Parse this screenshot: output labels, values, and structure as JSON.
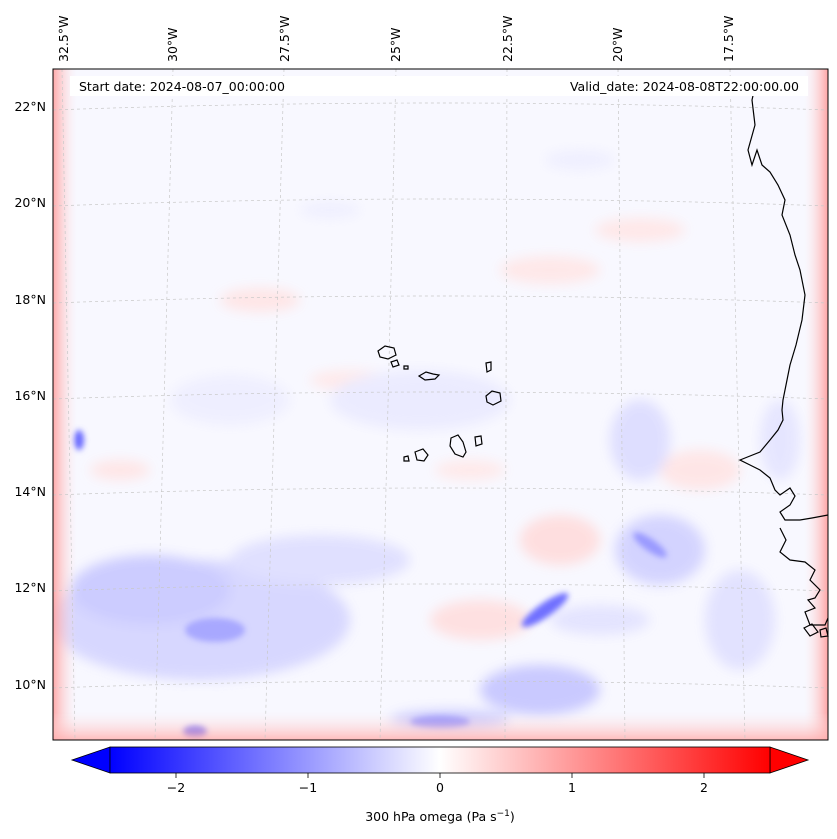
{
  "map": {
    "start_date_label": "Start date: 2024-08-07_00:00:00",
    "valid_date_label": "Valid_date: 2024-08-08T22:00:00.00",
    "longitude_labels": [
      "32.5°W",
      "30°W",
      "27.5°W",
      "25°W",
      "22.5°W",
      "20°W",
      "17.5°W"
    ],
    "latitude_labels": [
      "22°N",
      "20°N",
      "18°N",
      "16°N",
      "14°N",
      "12°N",
      "10°N"
    ],
    "field": "300 hPa omega",
    "colormap": "bwr",
    "gridlines": true
  },
  "colorbar": {
    "label_prefix": "300 hPa omega (Pa s",
    "label_exponent": "−1",
    "label_suffix": ")",
    "ticks": [
      "−2",
      "−1",
      "0",
      "1",
      "2"
    ],
    "tick_values": [
      -2,
      -1,
      0,
      1,
      2
    ],
    "range": [
      -2.5,
      2.5
    ],
    "extend": "both",
    "negative_color": "#0000ff",
    "neutral_color": "#ffffff",
    "positive_color": "#ff0000"
  }
}
